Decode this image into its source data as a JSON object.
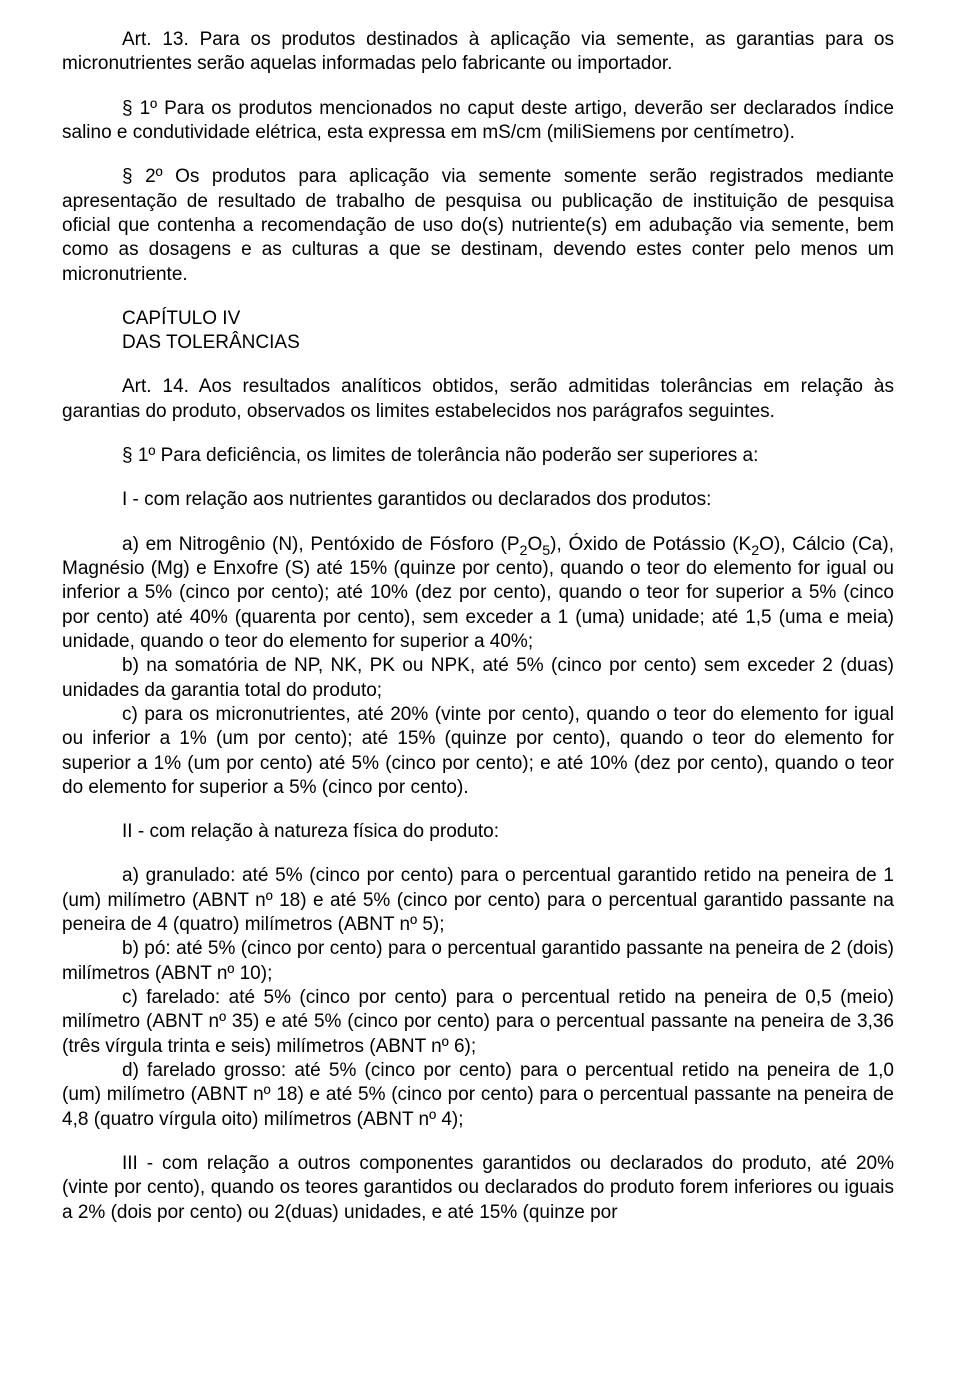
{
  "p1": "Art. 13. Para os produtos destinados à aplicação via semente, as garantias para os micronutrientes serão aquelas informadas pelo fabricante ou importador.",
  "p2": "§ 1º Para os produtos mencionados no caput deste artigo, deverão ser declarados índice salino e condutividade elétrica, esta expressa em mS/cm (miliSiemens por centímetro).",
  "p3": "§ 2º Os produtos para aplicação via semente somente serão registrados mediante apresentação de resultado de trabalho de pesquisa ou publicação de instituição de pesquisa oficial que contenha a recomendação de uso do(s) nutriente(s) em adubação via semente, bem como as dosagens e as culturas a que se destinam, devendo estes conter pelo menos um micronutriente.",
  "chapter_num": "CAPÍTULO IV",
  "chapter_title": "DAS TOLERÂNCIAS",
  "p4": "Art. 14. Aos resultados analíticos obtidos, serão admitidas tolerâncias em relação às garantias do produto, observados os limites estabelecidos nos parágrafos seguintes.",
  "p5": "§ 1º Para deficiência, os limites de tolerância não poderão ser superiores a:",
  "p6": "I - com relação aos nutrientes garantidos ou declarados dos produtos:",
  "list1_a_pre": "a) em Nitrogênio (N), Pentóxido de Fósforo (P",
  "list1_a_sub1": "2",
  "list1_a_mid1": "O",
  "list1_a_sub2": "5",
  "list1_a_mid2": "), Óxido de Potássio (K",
  "list1_a_sub3": "2",
  "list1_a_post": "O), Cálcio (Ca), Magnésio (Mg) e Enxofre (S) até 15% (quinze por cento), quando o teor do elemento for igual ou inferior a 5% (cinco por cento); até 10% (dez por cento), quando o teor for superior a 5% (cinco por cento) até 40% (quarenta por cento), sem exceder a 1 (uma) unidade; até 1,5 (uma e meia) unidade, quando o teor do elemento for superior a 40%;",
  "list1_b": "b) na somatória de NP, NK, PK ou NPK, até 5% (cinco por cento) sem exceder 2 (duas) unidades da garantia total do produto;",
  "list1_c": "c) para os micronutrientes, até 20% (vinte por cento), quando o teor do elemento for igual ou inferior a 1% (um por cento); até 15% (quinze por cento), quando o teor do elemento for superior a 1% (um por cento) até 5% (cinco por cento); e até 10% (dez por cento), quando o teor do elemento for superior a 5% (cinco por cento).",
  "p7": "II - com relação à natureza física do produto:",
  "list2_a": "a) granulado: até 5% (cinco por cento) para o percentual garantido retido na peneira de 1 (um) milímetro (ABNT nº 18) e até 5% (cinco por cento) para o percentual garantido passante na peneira de 4 (quatro) milímetros (ABNT nº 5);",
  "list2_b": "b) pó: até 5% (cinco por cento) para o percentual garantido passante na peneira de 2 (dois) milímetros (ABNT nº 10);",
  "list2_c": "c) farelado: até 5% (cinco por cento) para o percentual retido na peneira de 0,5 (meio) milímetro (ABNT nº 35) e até 5% (cinco por cento) para o percentual passante na peneira de 3,36 (três vírgula trinta e seis) milímetros (ABNT nº 6);",
  "list2_d": "d) farelado grosso: até 5% (cinco por cento) para o percentual retido na peneira de 1,0 (um) milímetro (ABNT nº 18) e até 5% (cinco por cento) para o percentual passante na peneira de 4,8 (quatro vírgula oito) milímetros (ABNT nº 4);",
  "p8": "III - com relação a outros componentes garantidos ou declarados do produto, até 20% (vinte por cento), quando os teores garantidos ou declarados do produto forem inferiores ou iguais a 2% (dois por cento) ou 2(duas) unidades, e até 15% (quinze por"
}
